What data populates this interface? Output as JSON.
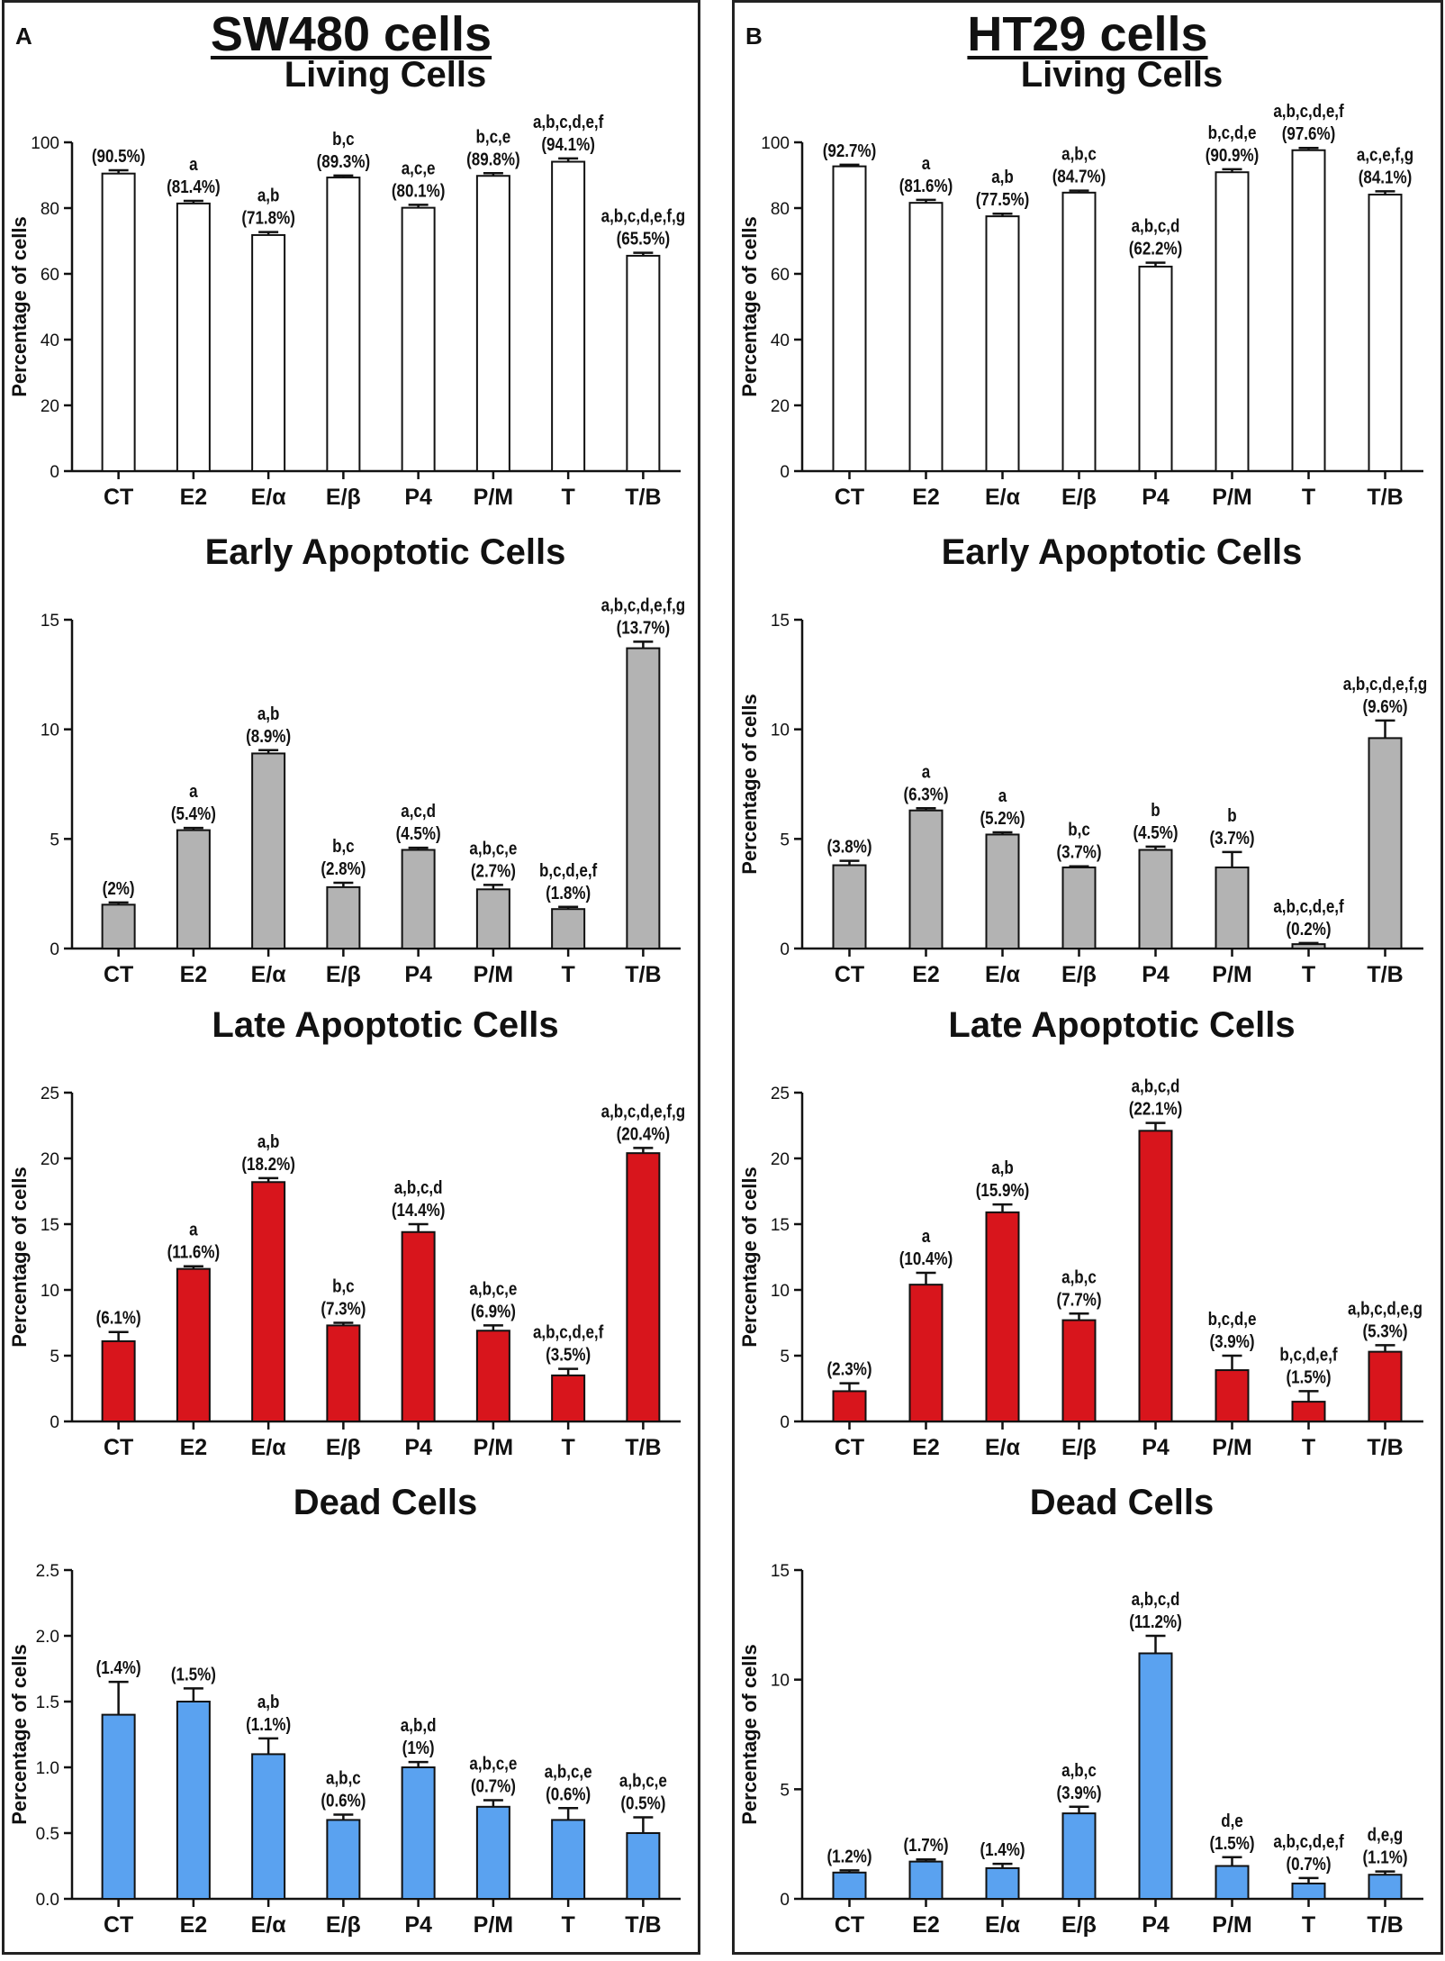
{
  "panels": [
    {
      "letter": "A",
      "title": "SW480 cells",
      "chart_data": [
        {
          "type": "bar",
          "title": "Living Cells",
          "ylabel": "Percentage of cells",
          "ylim": [
            0,
            100
          ],
          "yticks": [
            "0",
            "20",
            "40",
            "60",
            "80",
            "100"
          ],
          "yticks_values": [
            0,
            20,
            40,
            60,
            80,
            100
          ],
          "color": "#ffffff",
          "categories": [
            "CT",
            "E2",
            "E/α",
            "E/β",
            "P4",
            "P/M",
            "T",
            "T/B"
          ],
          "values": [
            90.5,
            81.4,
            71.8,
            89.3,
            80.1,
            89.8,
            94.1,
            65.5
          ],
          "errors": [
            1.0,
            0.8,
            0.9,
            0.6,
            0.9,
            0.8,
            1.0,
            0.9
          ],
          "value_labels": [
            "(90.5%)",
            "(81.4%)",
            "(71.8%)",
            "(89.3%)",
            "(80.1%)",
            "(89.8%)",
            "(94.1%)",
            "(65.5%)"
          ],
          "sig_labels": [
            "",
            "a",
            "a,b",
            "b,c",
            "a,c,e",
            "b,c,e",
            "a,b,c,d,e,f",
            "a,b,c,d,e,f,g"
          ]
        },
        {
          "type": "bar",
          "title": "Early Apoptotic Cells",
          "ylabel": "",
          "ylim": [
            0,
            15
          ],
          "yticks": [
            "0",
            "5",
            "10",
            "15"
          ],
          "yticks_values": [
            0,
            5,
            10,
            15
          ],
          "color": "#b3b3b3",
          "categories": [
            "CT",
            "E2",
            "E/α",
            "E/β",
            "P4",
            "P/M",
            "T",
            "T/B"
          ],
          "values": [
            2.0,
            5.4,
            8.9,
            2.8,
            4.5,
            2.7,
            1.8,
            13.7
          ],
          "errors": [
            0.1,
            0.1,
            0.15,
            0.2,
            0.1,
            0.2,
            0.1,
            0.3
          ],
          "value_labels": [
            "(2%)",
            "(5.4%)",
            "(8.9%)",
            "(2.8%)",
            "(4.5%)",
            "(2.7%)",
            "(1.8%)",
            "(13.7%)"
          ],
          "sig_labels": [
            "",
            "a",
            "a,b",
            "b,c",
            "a,c,d",
            "a,b,c,e",
            "b,c,d,e,f",
            "a,b,c,d,e,f,g"
          ]
        },
        {
          "type": "bar",
          "title": "Late Apoptotic Cells",
          "ylabel": "Percentage of cells",
          "ylim": [
            0,
            25
          ],
          "yticks": [
            "0",
            "5",
            "10",
            "15",
            "20",
            "25"
          ],
          "yticks_values": [
            0,
            5,
            10,
            15,
            20,
            25
          ],
          "color": "#d8151c",
          "categories": [
            "CT",
            "E2",
            "E/α",
            "E/β",
            "P4",
            "P/M",
            "T",
            "T/B"
          ],
          "values": [
            6.1,
            11.6,
            18.2,
            7.3,
            14.4,
            6.9,
            3.5,
            20.4
          ],
          "errors": [
            0.7,
            0.2,
            0.3,
            0.2,
            0.6,
            0.4,
            0.5,
            0.4
          ],
          "value_labels": [
            "(6.1%)",
            "(11.6%)",
            "(18.2%)",
            "(7.3%)",
            "(14.4%)",
            "(6.9%)",
            "(3.5%)",
            "(20.4%)"
          ],
          "sig_labels": [
            "",
            "a",
            "a,b",
            "b,c",
            "a,b,c,d",
            "a,b,c,e",
            "a,b,c,d,e,f",
            "a,b,c,d,e,f,g"
          ]
        },
        {
          "type": "bar",
          "title": "Dead Cells",
          "ylabel": "Percentage of cells",
          "ylim": [
            0,
            2.5
          ],
          "yticks": [
            "0.0",
            "0.5",
            "1.0",
            "1.5",
            "2.0",
            "2.5"
          ],
          "yticks_values": [
            0,
            0.5,
            1.0,
            1.5,
            2.0,
            2.5
          ],
          "color": "#5aa2f0",
          "categories": [
            "CT",
            "E2",
            "E/α",
            "E/β",
            "P4",
            "P/M",
            "T",
            "T/B"
          ],
          "values": [
            1.4,
            1.5,
            1.1,
            0.6,
            1.0,
            0.7,
            0.6,
            0.5
          ],
          "errors": [
            0.25,
            0.1,
            0.12,
            0.04,
            0.04,
            0.05,
            0.09,
            0.12
          ],
          "value_labels": [
            "(1.4%)",
            "(1.5%)",
            "(1.1%)",
            "(0.6%)",
            "(1%)",
            "(0.7%)",
            "(0.6%)",
            "(0.5%)"
          ],
          "sig_labels": [
            "",
            "",
            "a,b",
            "a,b,c",
            "a,b,d",
            "a,b,c,e",
            "a,b,c,e",
            "a,b,c,e"
          ]
        }
      ]
    },
    {
      "letter": "B",
      "title": "HT29 cells",
      "chart_data": [
        {
          "type": "bar",
          "title": "Living Cells",
          "ylabel": "Percentage of cells",
          "ylim": [
            0,
            100
          ],
          "yticks": [
            "0",
            "20",
            "40",
            "60",
            "80",
            "100"
          ],
          "yticks_values": [
            0,
            20,
            40,
            60,
            80,
            100
          ],
          "color": "#ffffff",
          "categories": [
            "CT",
            "E2",
            "E/α",
            "E/β",
            "P4",
            "P/M",
            "T",
            "T/B"
          ],
          "values": [
            92.7,
            81.6,
            77.5,
            84.7,
            62.2,
            90.9,
            97.6,
            84.1
          ],
          "errors": [
            0.5,
            0.9,
            0.8,
            0.6,
            1.2,
            0.9,
            0.7,
            1.0
          ],
          "value_labels": [
            "(92.7%)",
            "(81.6%)",
            "(77.5%)",
            "(84.7%)",
            "(62.2%)",
            "(90.9%)",
            "(97.6%)",
            "(84.1%)"
          ],
          "sig_labels": [
            "",
            "a",
            "a,b",
            "a,b,c",
            "a,b,c,d",
            "b,c,d,e",
            "a,b,c,d,e,f",
            "a,c,e,f,g"
          ]
        },
        {
          "type": "bar",
          "title": "Early Apoptotic Cells",
          "ylabel": "Percentage of cells",
          "ylim": [
            0,
            15
          ],
          "yticks": [
            "0",
            "5",
            "10",
            "15"
          ],
          "yticks_values": [
            0,
            5,
            10,
            15
          ],
          "color": "#b3b3b3",
          "categories": [
            "CT",
            "E2",
            "E/α",
            "E/β",
            "P4",
            "P/M",
            "T",
            "T/B"
          ],
          "values": [
            3.8,
            6.3,
            5.2,
            3.7,
            4.5,
            3.7,
            0.2,
            9.6
          ],
          "errors": [
            0.2,
            0.1,
            0.1,
            0.05,
            0.15,
            0.7,
            0.05,
            0.8
          ],
          "value_labels": [
            "(3.8%)",
            "(6.3%)",
            "(5.2%)",
            "(3.7%)",
            "(4.5%)",
            "(3.7%)",
            "(0.2%)",
            "(9.6%)"
          ],
          "sig_labels": [
            "",
            "a",
            "a",
            "b,c",
            "b",
            "b",
            "a,b,c,d,e,f",
            "a,b,c,d,e,f,g"
          ]
        },
        {
          "type": "bar",
          "title": "Late Apoptotic Cells",
          "ylabel": "Percentage of cells",
          "ylim": [
            0,
            25
          ],
          "yticks": [
            "0",
            "5",
            "10",
            "15",
            "20",
            "25"
          ],
          "yticks_values": [
            0,
            5,
            10,
            15,
            20,
            25
          ],
          "color": "#d8151c",
          "categories": [
            "CT",
            "E2",
            "E/α",
            "E/β",
            "P4",
            "P/M",
            "T",
            "T/B"
          ],
          "values": [
            2.3,
            10.4,
            15.9,
            7.7,
            22.1,
            3.9,
            1.5,
            5.3
          ],
          "errors": [
            0.6,
            0.9,
            0.6,
            0.5,
            0.6,
            1.1,
            0.8,
            0.5
          ],
          "value_labels": [
            "(2.3%)",
            "(10.4%)",
            "(15.9%)",
            "(7.7%)",
            "(22.1%)",
            "(3.9%)",
            "(1.5%)",
            "(5.3%)"
          ],
          "sig_labels": [
            "",
            "a",
            "a,b",
            "a,b,c",
            "a,b,c,d",
            "b,c,d,e",
            "b,c,d,e,f",
            "a,b,c,d,e,g"
          ]
        },
        {
          "type": "bar",
          "title": "Dead Cells",
          "ylabel": "Percentage of cells",
          "ylim": [
            0,
            15
          ],
          "yticks": [
            "0",
            "5",
            "10",
            "15"
          ],
          "yticks_values": [
            0,
            5,
            10,
            15
          ],
          "color": "#5aa2f0",
          "categories": [
            "CT",
            "E2",
            "E/α",
            "E/β",
            "P4",
            "P/M",
            "T",
            "T/B"
          ],
          "values": [
            1.2,
            1.7,
            1.4,
            3.9,
            11.2,
            1.5,
            0.7,
            1.1
          ],
          "errors": [
            0.1,
            0.1,
            0.2,
            0.3,
            0.8,
            0.4,
            0.25,
            0.15
          ],
          "value_labels": [
            "(1.2%)",
            "(1.7%)",
            "(1.4%)",
            "(3.9%)",
            "(11.2%)",
            "(1.5%)",
            "(0.7%)",
            "(1.1%)"
          ],
          "sig_labels": [
            "",
            "",
            "",
            "a,b,c",
            "a,b,c,d",
            "d,e",
            "a,b,c,d,e,f",
            "d,e,g"
          ]
        }
      ]
    }
  ]
}
